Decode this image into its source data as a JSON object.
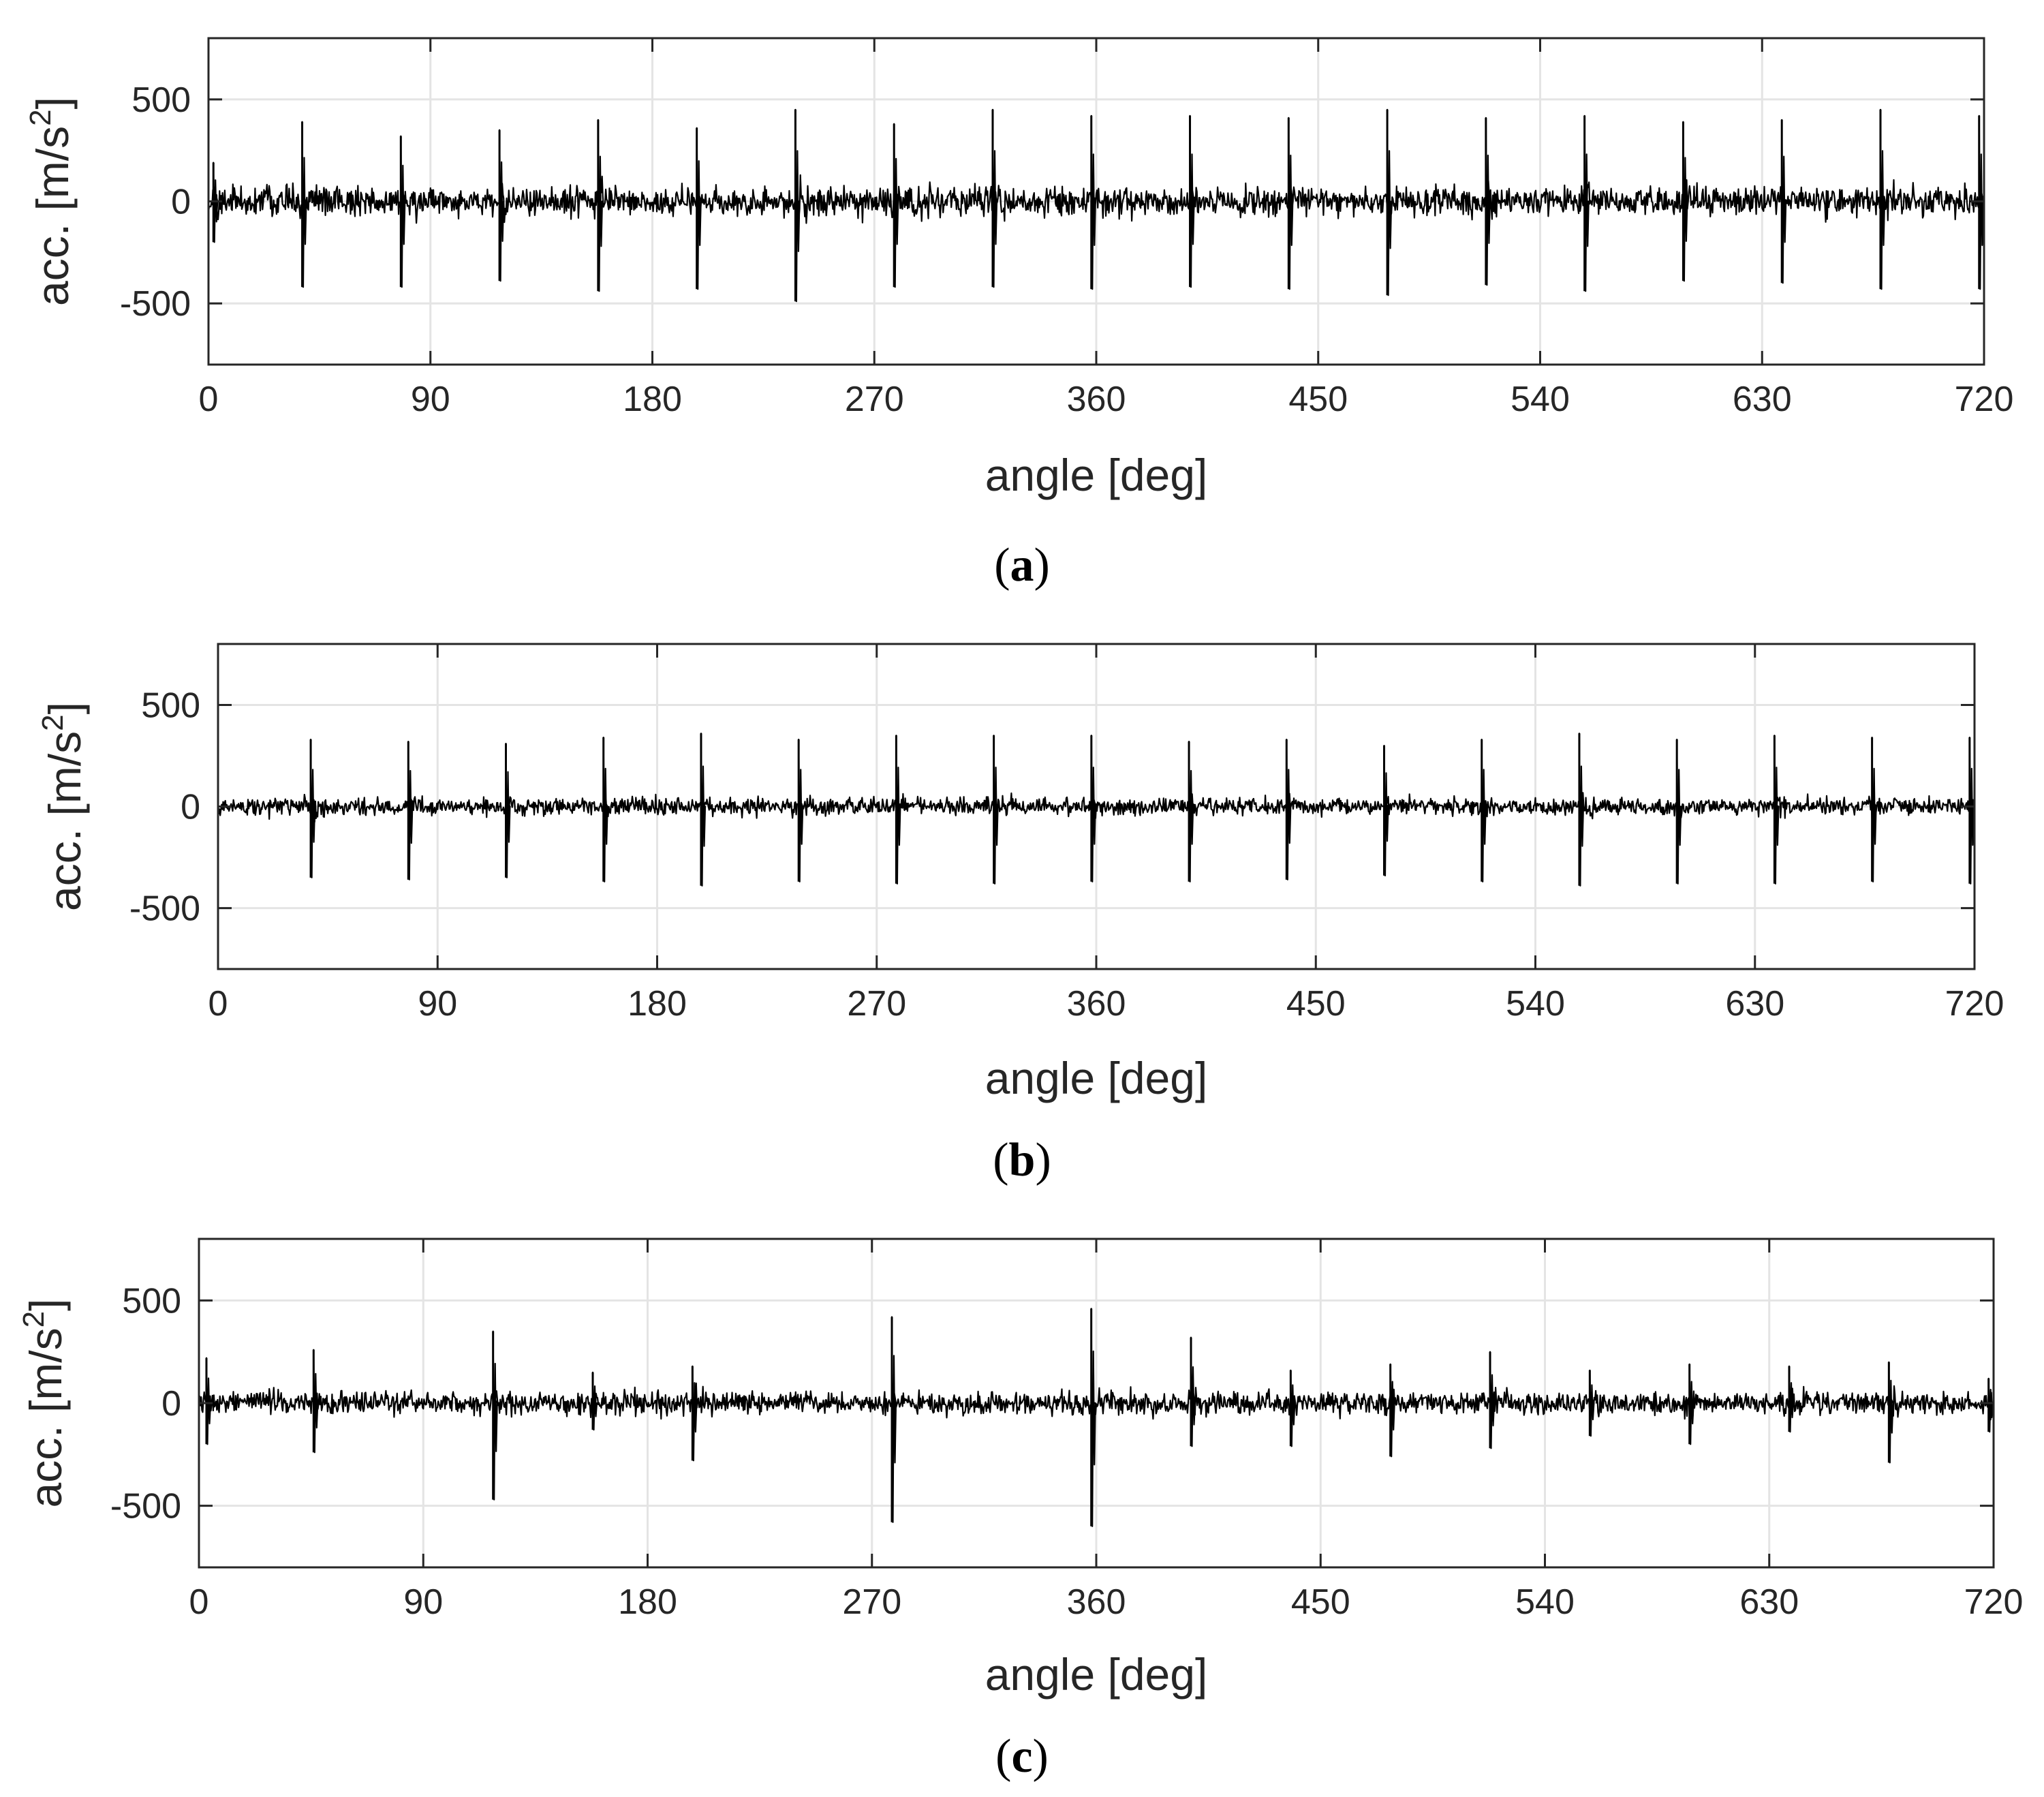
{
  "chart_data": [
    {
      "type": "line",
      "panel": "a",
      "panel_label": "a",
      "xlabel": "angle [deg]",
      "ylabel_base": "acc. [m/s",
      "ylabel_exp": "2",
      "ylabel_close": "]",
      "xlim": [
        0,
        720
      ],
      "ylim": [
        -800,
        800
      ],
      "xticks": [
        0,
        90,
        180,
        270,
        360,
        450,
        540,
        630,
        720
      ],
      "xtick_labels": [
        "0",
        "90",
        "180",
        "270",
        "360",
        "450",
        "540",
        "630",
        "720"
      ],
      "yticks": [
        -500,
        0,
        500
      ],
      "ytick_labels": [
        "-500",
        "0",
        "500"
      ],
      "grid": true,
      "series": [
        {
          "color": "#000000",
          "noise_amplitude": 120,
          "peaks": [
            {
              "x": 2,
              "max": 190,
              "min": -200
            },
            {
              "x": 38,
              "max": 390,
              "min": -420
            },
            {
              "x": 78,
              "max": 320,
              "min": -420
            },
            {
              "x": 118,
              "max": 350,
              "min": -390
            },
            {
              "x": 158,
              "max": 400,
              "min": -440
            },
            {
              "x": 198,
              "max": 360,
              "min": -430
            },
            {
              "x": 238,
              "max": 450,
              "min": -490
            },
            {
              "x": 278,
              "max": 380,
              "min": -420
            },
            {
              "x": 318,
              "max": 450,
              "min": -420
            },
            {
              "x": 358,
              "max": 420,
              "min": -430
            },
            {
              "x": 398,
              "max": 420,
              "min": -420
            },
            {
              "x": 438,
              "max": 410,
              "min": -430
            },
            {
              "x": 478,
              "max": 450,
              "min": -460
            },
            {
              "x": 518,
              "max": 410,
              "min": -410
            },
            {
              "x": 558,
              "max": 420,
              "min": -440
            },
            {
              "x": 598,
              "max": 390,
              "min": -390
            },
            {
              "x": 638,
              "max": 400,
              "min": -400
            },
            {
              "x": 678,
              "max": 450,
              "min": -430
            },
            {
              "x": 718,
              "max": 420,
              "min": -430
            }
          ]
        }
      ]
    },
    {
      "type": "line",
      "panel": "b",
      "panel_label": "b",
      "xlabel": "angle [deg]",
      "ylabel_base": "acc. [m/s",
      "ylabel_exp": "2",
      "ylabel_close": "]",
      "xlim": [
        0,
        720
      ],
      "ylim": [
        -800,
        800
      ],
      "xticks": [
        0,
        90,
        180,
        270,
        360,
        450,
        540,
        630,
        720
      ],
      "xtick_labels": [
        "0",
        "90",
        "180",
        "270",
        "360",
        "450",
        "540",
        "630",
        "720"
      ],
      "yticks": [
        -500,
        0,
        500
      ],
      "ytick_labels": [
        "-500",
        "0",
        "500"
      ],
      "grid": true,
      "series": [
        {
          "color": "#000000",
          "noise_amplitude": 70,
          "peaks": [
            {
              "x": 38,
              "max": 330,
              "min": -350
            },
            {
              "x": 78,
              "max": 320,
              "min": -360
            },
            {
              "x": 118,
              "max": 310,
              "min": -350
            },
            {
              "x": 158,
              "max": 340,
              "min": -370
            },
            {
              "x": 198,
              "max": 360,
              "min": -390
            },
            {
              "x": 238,
              "max": 330,
              "min": -370
            },
            {
              "x": 278,
              "max": 350,
              "min": -380
            },
            {
              "x": 318,
              "max": 350,
              "min": -380
            },
            {
              "x": 358,
              "max": 350,
              "min": -370
            },
            {
              "x": 398,
              "max": 320,
              "min": -370
            },
            {
              "x": 438,
              "max": 330,
              "min": -360
            },
            {
              "x": 478,
              "max": 300,
              "min": -340
            },
            {
              "x": 518,
              "max": 330,
              "min": -370
            },
            {
              "x": 558,
              "max": 360,
              "min": -390
            },
            {
              "x": 598,
              "max": 330,
              "min": -380
            },
            {
              "x": 638,
              "max": 350,
              "min": -380
            },
            {
              "x": 678,
              "max": 340,
              "min": -370
            },
            {
              "x": 718,
              "max": 340,
              "min": -380
            }
          ]
        }
      ]
    },
    {
      "type": "line",
      "panel": "c",
      "panel_label": "c",
      "xlabel": "angle [deg]",
      "ylabel_base": "acc. [m/s",
      "ylabel_exp": "2",
      "ylabel_close": "]",
      "xlim": [
        0,
        720
      ],
      "ylim": [
        -800,
        800
      ],
      "xticks": [
        0,
        90,
        180,
        270,
        360,
        450,
        540,
        630,
        720
      ],
      "xtick_labels": [
        "0",
        "90",
        "180",
        "270",
        "360",
        "450",
        "540",
        "630",
        "720"
      ],
      "yticks": [
        -500,
        0,
        500
      ],
      "ytick_labels": [
        "-500",
        "0",
        "500"
      ],
      "grid": true,
      "series": [
        {
          "color": "#000000",
          "noise_amplitude": 90,
          "peaks": [
            {
              "x": 3,
              "max": 220,
              "min": -200
            },
            {
              "x": 46,
              "max": 260,
              "min": -240
            },
            {
              "x": 118,
              "max": 350,
              "min": -470
            },
            {
              "x": 158,
              "max": 150,
              "min": -130
            },
            {
              "x": 198,
              "max": 180,
              "min": -280
            },
            {
              "x": 278,
              "max": 420,
              "min": -580
            },
            {
              "x": 358,
              "max": 460,
              "min": -600
            },
            {
              "x": 398,
              "max": 320,
              "min": -210
            },
            {
              "x": 438,
              "max": 160,
              "min": -210
            },
            {
              "x": 478,
              "max": 190,
              "min": -260
            },
            {
              "x": 518,
              "max": 250,
              "min": -220
            },
            {
              "x": 558,
              "max": 160,
              "min": -160
            },
            {
              "x": 598,
              "max": 190,
              "min": -200
            },
            {
              "x": 638,
              "max": 180,
              "min": -140
            },
            {
              "x": 678,
              "max": 200,
              "min": -290
            },
            {
              "x": 718,
              "max": 120,
              "min": -140
            }
          ]
        }
      ]
    }
  ]
}
